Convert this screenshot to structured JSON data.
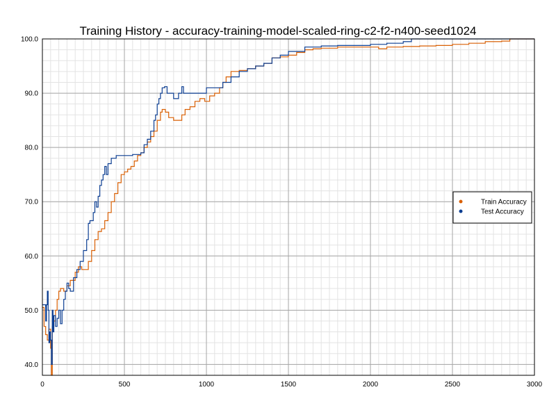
{
  "chart_data": {
    "type": "line",
    "title": "Training History - accuracy-training-model-scaled-ring-c2-f2-n400-seed1024",
    "xlabel": "",
    "ylabel": "",
    "xlim": [
      0,
      3000
    ],
    "ylim": [
      38,
      100
    ],
    "x_ticks": [
      0,
      500,
      1000,
      1500,
      2000,
      2500,
      3000
    ],
    "y_ticks": [
      40,
      50,
      60,
      70,
      80,
      90,
      100
    ],
    "x_tick_labels": [
      "0",
      "500",
      "1000",
      "1500",
      "2000",
      "2500",
      "3000"
    ],
    "y_tick_labels": [
      "40.0",
      "50.0",
      "60.0",
      "70.0",
      "80.0",
      "90.0",
      "100.0"
    ],
    "x_minor_step": 50,
    "y_minor_step": 2,
    "grid": true,
    "legend": "right",
    "series": [
      {
        "name": "Train Accuracy",
        "color": "#d95f02",
        "points": [
          [
            0,
            50.5
          ],
          [
            10,
            47
          ],
          [
            20,
            45.5
          ],
          [
            30,
            44.5
          ],
          [
            40,
            46.5
          ],
          [
            50,
            43
          ],
          [
            55,
            38
          ],
          [
            60,
            47
          ],
          [
            70,
            48
          ],
          [
            80,
            50
          ],
          [
            90,
            52
          ],
          [
            100,
            53.5
          ],
          [
            110,
            54
          ],
          [
            130,
            53.5
          ],
          [
            150,
            54.5
          ],
          [
            170,
            55.5
          ],
          [
            200,
            57
          ],
          [
            220,
            58
          ],
          [
            240,
            57.5
          ],
          [
            260,
            57.5
          ],
          [
            280,
            59
          ],
          [
            300,
            61
          ],
          [
            320,
            63
          ],
          [
            340,
            64.5
          ],
          [
            360,
            65
          ],
          [
            380,
            66.5
          ],
          [
            400,
            68
          ],
          [
            420,
            70
          ],
          [
            440,
            71.5
          ],
          [
            460,
            73.5
          ],
          [
            480,
            75
          ],
          [
            500,
            75.5
          ],
          [
            520,
            76
          ],
          [
            540,
            76.5
          ],
          [
            560,
            77.5
          ],
          [
            580,
            78.5
          ],
          [
            600,
            79
          ],
          [
            620,
            80
          ],
          [
            640,
            81
          ],
          [
            660,
            82
          ],
          [
            680,
            83
          ],
          [
            700,
            85
          ],
          [
            720,
            86.5
          ],
          [
            730,
            87
          ],
          [
            750,
            86.5
          ],
          [
            770,
            85.5
          ],
          [
            800,
            85
          ],
          [
            830,
            85
          ],
          [
            850,
            86
          ],
          [
            870,
            87
          ],
          [
            900,
            87.5
          ],
          [
            930,
            88.5
          ],
          [
            960,
            89
          ],
          [
            990,
            88.5
          ],
          [
            1020,
            89.5
          ],
          [
            1050,
            90
          ],
          [
            1080,
            91
          ],
          [
            1100,
            92
          ],
          [
            1120,
            93
          ],
          [
            1150,
            94
          ],
          [
            1200,
            94.2
          ],
          [
            1250,
            94.5
          ],
          [
            1300,
            95
          ],
          [
            1350,
            95.5
          ],
          [
            1400,
            96.5
          ],
          [
            1450,
            96.7
          ],
          [
            1500,
            97
          ],
          [
            1550,
            97.5
          ],
          [
            1600,
            98
          ],
          [
            1650,
            98.2
          ],
          [
            1700,
            98.3
          ],
          [
            1800,
            98.5
          ],
          [
            1900,
            98.5
          ],
          [
            2000,
            98.5
          ],
          [
            2050,
            98.2
          ],
          [
            2100,
            98.5
          ],
          [
            2200,
            98.6
          ],
          [
            2300,
            98.7
          ],
          [
            2400,
            98.8
          ],
          [
            2500,
            99
          ],
          [
            2600,
            99.2
          ],
          [
            2700,
            99.5
          ],
          [
            2800,
            99.6
          ],
          [
            2850,
            100
          ],
          [
            3000,
            100
          ]
        ]
      },
      {
        "name": "Test Accuracy",
        "color": "#0b3d91",
        "points": [
          [
            0,
            51
          ],
          [
            10,
            51
          ],
          [
            20,
            48
          ],
          [
            25,
            51
          ],
          [
            30,
            53.5
          ],
          [
            35,
            50
          ],
          [
            40,
            44
          ],
          [
            45,
            46
          ],
          [
            50,
            44.5
          ],
          [
            55,
            40
          ],
          [
            60,
            50
          ],
          [
            65,
            46
          ],
          [
            70,
            49
          ],
          [
            80,
            47
          ],
          [
            90,
            48.5
          ],
          [
            100,
            50
          ],
          [
            110,
            47.5
          ],
          [
            120,
            50
          ],
          [
            130,
            52
          ],
          [
            140,
            53.5
          ],
          [
            150,
            55
          ],
          [
            160,
            54
          ],
          [
            170,
            53.5
          ],
          [
            190,
            56
          ],
          [
            210,
            57.5
          ],
          [
            230,
            59
          ],
          [
            250,
            61
          ],
          [
            270,
            63
          ],
          [
            280,
            66
          ],
          [
            290,
            66.5
          ],
          [
            310,
            68
          ],
          [
            320,
            70
          ],
          [
            330,
            69
          ],
          [
            340,
            71
          ],
          [
            350,
            73
          ],
          [
            360,
            74
          ],
          [
            370,
            75
          ],
          [
            380,
            76.5
          ],
          [
            390,
            75
          ],
          [
            400,
            77
          ],
          [
            420,
            78
          ],
          [
            450,
            78.5
          ],
          [
            500,
            78.5
          ],
          [
            550,
            78.7
          ],
          [
            600,
            79
          ],
          [
            620,
            80.5
          ],
          [
            640,
            81.5
          ],
          [
            660,
            83
          ],
          [
            680,
            85
          ],
          [
            690,
            86
          ],
          [
            700,
            88
          ],
          [
            710,
            89
          ],
          [
            720,
            90
          ],
          [
            730,
            91
          ],
          [
            745,
            91.2
          ],
          [
            760,
            90
          ],
          [
            800,
            89
          ],
          [
            830,
            90
          ],
          [
            850,
            91.2
          ],
          [
            860,
            90
          ],
          [
            900,
            90
          ],
          [
            1000,
            91
          ],
          [
            1100,
            92
          ],
          [
            1150,
            93
          ],
          [
            1200,
            94
          ],
          [
            1250,
            94.5
          ],
          [
            1300,
            95
          ],
          [
            1350,
            95.5
          ],
          [
            1400,
            96.5
          ],
          [
            1450,
            97
          ],
          [
            1500,
            97.7
          ],
          [
            1600,
            98.5
          ],
          [
            1700,
            98.7
          ],
          [
            1800,
            98.8
          ],
          [
            1900,
            98.8
          ],
          [
            2000,
            99
          ],
          [
            2100,
            99.2
          ],
          [
            2200,
            99.5
          ],
          [
            2250,
            100
          ],
          [
            3000,
            100
          ]
        ]
      }
    ]
  }
}
